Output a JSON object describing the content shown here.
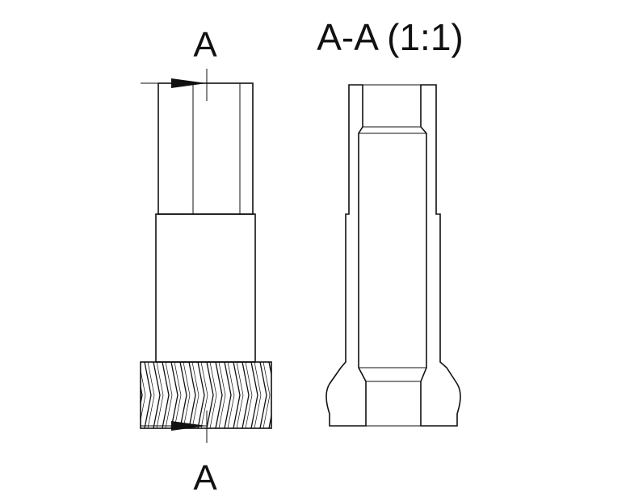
{
  "labels": {
    "section_top": "A",
    "section_bottom": "A",
    "section_title": "A-A (1:1)"
  },
  "colors": {
    "line": "#111111",
    "background": "#ffffff"
  }
}
